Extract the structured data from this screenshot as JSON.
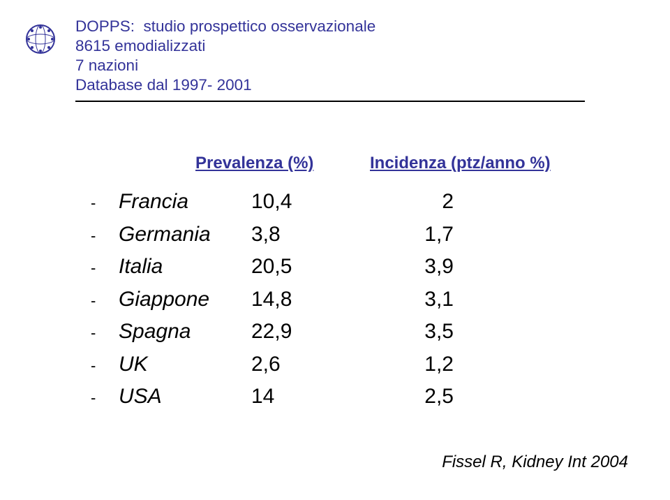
{
  "header": {
    "line1": "DOPPS:  studio prospettico osservazionale",
    "line2": "8615 emodializzati",
    "line3": "7 nazioni",
    "line4": "Database dal 1997- 2001"
  },
  "columns": {
    "prev": "Prevalenza (%)",
    "inc": "Incidenza (ptz/anno %)"
  },
  "rows": [
    {
      "country": "Francia",
      "prev": "10,4",
      "inc": "2"
    },
    {
      "country": "Germania",
      "prev": "3,8",
      "inc": "1,7"
    },
    {
      "country": "Italia",
      "prev": "20,5",
      "inc": "3,9"
    },
    {
      "country": "Giappone",
      "prev": "14,8",
      "inc": "3,1"
    },
    {
      "country": "Spagna",
      "prev": "22,9",
      "inc": "3,5"
    },
    {
      "country": "UK",
      "prev": "2,6",
      "inc": "1,2"
    },
    {
      "country": "USA",
      "prev": "14",
      "inc": "2,5"
    }
  ],
  "citation": "Fissel R, Kidney Int 2004",
  "colors": {
    "accent": "#333399",
    "text": "#000000",
    "bg": "#ffffff"
  },
  "bullet_graphic": {
    "outer_ring": "#333399",
    "outer_fill": "#ffffff",
    "holes": "#333399"
  }
}
